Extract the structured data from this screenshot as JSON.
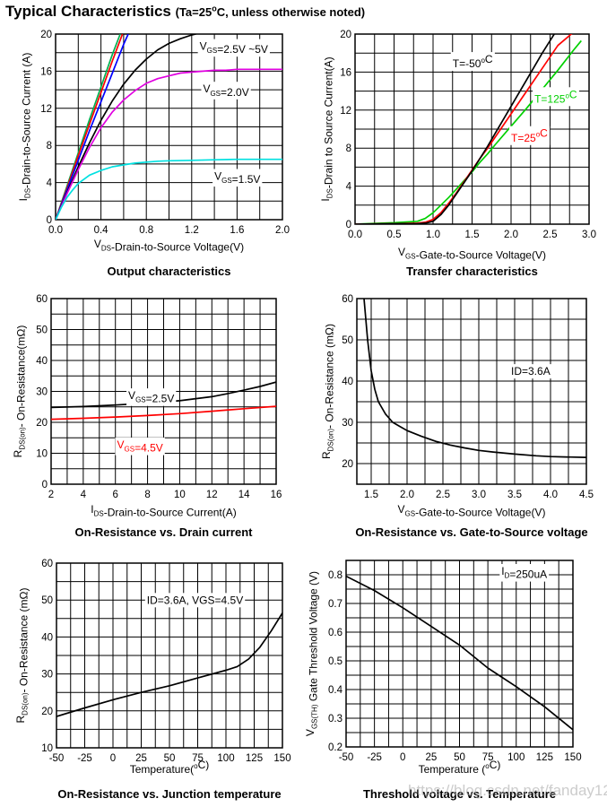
{
  "page": {
    "title": "Typical Characteristics",
    "title_condition": "(Ta=25",
    "title_degree": "o",
    "title_condition_end": "C, unless otherwise noted)",
    "watermark": "https://blog.csdn.net/fanday123"
  },
  "chart_data": [
    {
      "id": "output",
      "type": "line",
      "title": "Output characteristics",
      "xlabel": [
        [
          "V",
          ""
        ],
        [
          "DS",
          "sub"
        ],
        [
          "-Drain-to-Source Voltage(V)",
          ""
        ]
      ],
      "ylabel": [
        [
          "I",
          ""
        ],
        [
          "DS",
          "sub"
        ],
        [
          "-Drain-to-Source Current (A)",
          ""
        ]
      ],
      "xlim": [
        0,
        2.0
      ],
      "ylim": [
        0,
        20
      ],
      "xticks": [
        0,
        0.4,
        0.8,
        1.2,
        1.6,
        2.0
      ],
      "xtick_labels": [
        "0.0",
        "0.4",
        "0.8",
        "1.2",
        "1.6",
        "2.0"
      ],
      "yticks": [
        0,
        4,
        8,
        12,
        16,
        20
      ],
      "ytick_labels": [
        "0",
        "4",
        "8",
        "12",
        "16",
        "20"
      ],
      "grid": true,
      "series": [
        {
          "color": "#00b050",
          "x": [
            0,
            0.1,
            0.2,
            0.3,
            0.4,
            0.5,
            0.57
          ],
          "y": [
            0,
            3.6,
            7.2,
            10.8,
            14.3,
            17.8,
            20
          ]
        },
        {
          "color": "#ff0000",
          "x": [
            0,
            0.1,
            0.2,
            0.3,
            0.4,
            0.5,
            0.59
          ],
          "y": [
            0,
            3.4,
            6.9,
            10.3,
            13.7,
            17.1,
            20
          ]
        },
        {
          "color": "#0000ff",
          "x": [
            0,
            0.1,
            0.2,
            0.3,
            0.4,
            0.5,
            0.6,
            0.64
          ],
          "y": [
            0,
            3.2,
            6.4,
            9.6,
            12.7,
            15.8,
            18.9,
            20
          ]
        },
        {
          "color": "#000000",
          "x": [
            0,
            0.1,
            0.2,
            0.3,
            0.4,
            0.5,
            0.6,
            0.7,
            0.8,
            0.9,
            1.0,
            1.1,
            1.2,
            1.3,
            1.4,
            1.5,
            1.6,
            1.7,
            1.8,
            1.9,
            2.0
          ],
          "y": [
            0,
            2.9,
            5.7,
            8.3,
            10.7,
            12.8,
            14.6,
            16.1,
            17.3,
            18.3,
            19.0,
            19.5,
            19.9,
            20.2,
            20.4,
            20.5,
            20.6,
            20.6,
            20.6,
            20.6,
            20.6
          ]
        },
        {
          "color": "#e000e0",
          "x": [
            0,
            0.1,
            0.2,
            0.3,
            0.4,
            0.5,
            0.6,
            0.7,
            0.8,
            0.9,
            1.0,
            1.1,
            1.2,
            1.3,
            1.4,
            1.5,
            1.6,
            1.7,
            1.8,
            1.9,
            2.0
          ],
          "y": [
            0,
            2.8,
            5.4,
            7.8,
            9.9,
            11.6,
            12.9,
            13.9,
            14.7,
            15.2,
            15.5,
            15.8,
            15.9,
            16.0,
            16.1,
            16.1,
            16.2,
            16.2,
            16.2,
            16.2,
            16.2
          ]
        },
        {
          "color": "#00e0e0",
          "x": [
            0,
            0.05,
            0.1,
            0.15,
            0.2,
            0.3,
            0.4,
            0.5,
            0.6,
            0.7,
            0.8,
            0.9,
            1.0,
            1.2,
            1.4,
            1.6,
            1.8,
            2.0
          ],
          "y": [
            0,
            1.3,
            2.4,
            3.2,
            3.9,
            4.8,
            5.3,
            5.7,
            5.9,
            6.1,
            6.2,
            6.3,
            6.35,
            6.4,
            6.45,
            6.5,
            6.5,
            6.5
          ]
        }
      ],
      "annotations": [
        {
          "parts": [
            [
              "V",
              ""
            ],
            [
              "GS",
              "sub"
            ],
            [
              "=2.5V ~5V",
              ""
            ]
          ],
          "x": 1.27,
          "y": 18.3,
          "color": "#000"
        },
        {
          "parts": [
            [
              "V",
              ""
            ],
            [
              "GS",
              "sub"
            ],
            [
              "=2.0V",
              ""
            ]
          ],
          "x": 1.3,
          "y": 13.7,
          "color": "#000"
        },
        {
          "parts": [
            [
              "V",
              ""
            ],
            [
              "GS",
              "sub"
            ],
            [
              "=1.5V",
              ""
            ]
          ],
          "x": 1.4,
          "y": 4.3,
          "color": "#000"
        }
      ]
    },
    {
      "id": "transfer",
      "type": "line",
      "title": "Transfer characteristics",
      "xlabel": [
        [
          "V",
          ""
        ],
        [
          "GS",
          "sub"
        ],
        [
          "-Gate-to-Source Voltage(V)",
          ""
        ]
      ],
      "ylabel": [
        [
          "I",
          ""
        ],
        [
          "DS",
          "sub"
        ],
        [
          "-Drain to Source Current(A)",
          ""
        ]
      ],
      "xlim": [
        0,
        3.0
      ],
      "ylim": [
        0,
        20
      ],
      "xticks": [
        0,
        0.5,
        1.0,
        1.5,
        2.0,
        2.5,
        3.0
      ],
      "xtick_labels": [
        "0.0",
        "0.5",
        "1.0",
        "1.5",
        "2.0",
        "2.5",
        "3.0"
      ],
      "yticks": [
        0,
        4,
        8,
        12,
        16,
        20
      ],
      "ytick_labels": [
        "0",
        "4",
        "8",
        "12",
        "16",
        "20"
      ],
      "grid": true,
      "series": [
        {
          "color": "#00d000",
          "x": [
            0,
            0.5,
            0.8,
            0.9,
            1.0,
            1.1,
            1.2,
            1.3,
            1.4,
            1.5,
            1.6,
            1.7,
            1.8,
            2.0,
            2.2,
            2.4,
            2.6,
            2.8,
            2.9
          ],
          "y": [
            0,
            0.15,
            0.3,
            0.6,
            1.2,
            2.0,
            2.8,
            3.7,
            4.6,
            5.5,
            6.5,
            7.4,
            8.4,
            10.3,
            12.2,
            14.2,
            16.2,
            18.3,
            19.3
          ]
        },
        {
          "color": "#ff0000",
          "x": [
            0,
            0.5,
            0.8,
            0.9,
            1.0,
            1.1,
            1.2,
            1.3,
            1.4,
            1.5,
            1.6,
            1.7,
            1.8,
            2.0,
            2.2,
            2.4,
            2.6,
            2.8
          ],
          "y": [
            0,
            0.05,
            0.1,
            0.2,
            0.5,
            1.2,
            2.2,
            3.3,
            4.5,
            5.7,
            6.9,
            8.0,
            9.2,
            11.6,
            14.0,
            16.4,
            18.8,
            20.2
          ]
        },
        {
          "color": "#000000",
          "x": [
            0,
            0.5,
            0.8,
            0.9,
            1.0,
            1.1,
            1.2,
            1.3,
            1.4,
            1.5,
            1.6,
            1.7,
            1.8,
            2.0,
            2.2,
            2.4,
            2.6,
            2.7
          ],
          "y": [
            0,
            0.05,
            0.05,
            0.1,
            0.3,
            1.0,
            2.0,
            3.2,
            4.4,
            5.6,
            6.9,
            8.2,
            9.6,
            12.4,
            15.2,
            18.0,
            20.6,
            21.4
          ]
        }
      ],
      "annotations": [
        {
          "parts": [
            [
              "T=-50",
              ""
            ],
            [
              "o",
              "sup"
            ],
            [
              "C",
              ""
            ]
          ],
          "x": 1.25,
          "y": 16.5,
          "color": "#000"
        },
        {
          "parts": [
            [
              "T=125",
              ""
            ],
            [
              "o",
              "sup"
            ],
            [
              "C",
              ""
            ]
          ],
          "x": 2.3,
          "y": 12.8,
          "color": "#00d000"
        },
        {
          "parts": [
            [
              "T=25",
              ""
            ],
            [
              "o",
              "sup"
            ],
            [
              "C",
              ""
            ]
          ],
          "x": 2.0,
          "y": 8.7,
          "color": "#ff0000"
        }
      ]
    },
    {
      "id": "ron-id",
      "type": "line",
      "title": "On-Resistance vs. Drain current",
      "xlabel": [
        [
          "I",
          ""
        ],
        [
          "DS",
          "sub"
        ],
        [
          "-Drain-to-Source Current(A)",
          ""
        ]
      ],
      "ylabel": [
        [
          "R",
          ""
        ],
        [
          "DS(on)",
          "sub"
        ],
        [
          "- On-Resistance(mΩ)",
          ""
        ]
      ],
      "xlim": [
        2,
        16
      ],
      "ylim": [
        0,
        60
      ],
      "xticks": [
        2,
        4,
        6,
        8,
        10,
        12,
        14,
        16
      ],
      "xtick_labels": [
        "2",
        "4",
        "6",
        "8",
        "10",
        "12",
        "14",
        "16"
      ],
      "yticks": [
        0,
        10,
        20,
        30,
        40,
        50,
        60
      ],
      "ytick_labels": [
        "0",
        "10",
        "20",
        "30",
        "40",
        "50",
        "60"
      ],
      "grid": true,
      "series": [
        {
          "color": "#000000",
          "x": [
            2,
            4,
            6,
            8,
            10,
            12,
            13,
            14,
            15,
            16
          ],
          "y": [
            24.8,
            25.1,
            25.6,
            26.2,
            27.0,
            28.3,
            29.3,
            30.4,
            31.6,
            33.0
          ]
        },
        {
          "color": "#ff0000",
          "x": [
            2,
            4,
            6,
            8,
            10,
            12,
            14,
            16
          ],
          "y": [
            21.0,
            21.3,
            21.7,
            22.2,
            22.8,
            23.6,
            24.4,
            25.2
          ]
        }
      ],
      "annotations": [
        {
          "parts": [
            [
              "V",
              ""
            ],
            [
              "GS",
              "sub"
            ],
            [
              "=2.5V",
              ""
            ]
          ],
          "x": 6.8,
          "y": 27.5,
          "color": "#000"
        },
        {
          "parts": [
            [
              "V",
              ""
            ],
            [
              "GS",
              "sub"
            ],
            [
              "=4.5V",
              ""
            ]
          ],
          "x": 6.1,
          "y": 11.6,
          "color": "#ff0000"
        }
      ]
    },
    {
      "id": "ron-vgs",
      "type": "line",
      "title": "On-Resistance vs. Gate-to-Source voltage",
      "xlabel": [
        [
          "V",
          ""
        ],
        [
          "GS",
          "sub"
        ],
        [
          "-Gate-to-Source Voltage(V)",
          ""
        ]
      ],
      "ylabel": [
        [
          "R",
          ""
        ],
        [
          "DS(on)",
          "sub"
        ],
        [
          "- On-Resistance (mΩ)",
          ""
        ]
      ],
      "xlim": [
        1.3,
        4.5
      ],
      "ylim": [
        15,
        60
      ],
      "xticks": [
        1.5,
        2.0,
        2.5,
        3.0,
        3.5,
        4.0,
        4.5
      ],
      "xtick_labels": [
        "1.5",
        "2.0",
        "2.5",
        "3.0",
        "3.5",
        "4.0",
        "4.5"
      ],
      "yticks": [
        20,
        30,
        40,
        50,
        60
      ],
      "ytick_labels": [
        "20",
        "30",
        "40",
        "50",
        "60"
      ],
      "grid": true,
      "series": [
        {
          "color": "#000000",
          "x": [
            1.4,
            1.45,
            1.5,
            1.55,
            1.6,
            1.7,
            1.8,
            1.9,
            2.0,
            2.2,
            2.4,
            2.6,
            2.8,
            3.0,
            3.2,
            3.5,
            3.8,
            4.0,
            4.2,
            4.5
          ],
          "y": [
            60,
            50,
            42.5,
            38,
            35,
            32,
            30,
            29,
            28,
            26.6,
            25.4,
            24.5,
            23.8,
            23.2,
            22.8,
            22.3,
            21.9,
            21.7,
            21.6,
            21.5
          ]
        }
      ],
      "annotations": [
        {
          "parts": [
            [
              "ID=3.6A",
              ""
            ]
          ],
          "x": 3.45,
          "y": 41.5,
          "color": "#000"
        }
      ]
    },
    {
      "id": "ron-temp",
      "type": "line",
      "title": "On-Resistance vs. Junction temperature",
      "xlabel": [
        [
          "Temperature(",
          ""
        ],
        [
          "o",
          "sup"
        ],
        [
          "C)",
          ""
        ]
      ],
      "ylabel": [
        [
          "R",
          ""
        ],
        [
          "DS(on)",
          "sub"
        ],
        [
          "- On-Resistance (mΩ)",
          ""
        ]
      ],
      "xlim": [
        -50,
        150
      ],
      "ylim": [
        10,
        60
      ],
      "xticks": [
        -50,
        -25,
        0,
        25,
        50,
        75,
        100,
        125,
        150
      ],
      "xtick_labels": [
        "-50",
        "-25",
        "0",
        "25",
        "50",
        "75",
        "100",
        "125",
        "150"
      ],
      "yticks": [
        10,
        20,
        30,
        40,
        50,
        60
      ],
      "ytick_labels": [
        "10",
        "20",
        "30",
        "40",
        "50",
        "60"
      ],
      "grid": true,
      "series": [
        {
          "color": "#000000",
          "x": [
            -50,
            -25,
            0,
            25,
            50,
            75,
            100,
            110,
            120,
            130,
            140,
            150
          ],
          "y": [
            18.5,
            20.8,
            23.0,
            25.0,
            26.8,
            28.9,
            31.0,
            32.0,
            34.0,
            37.2,
            41.6,
            46.5
          ]
        }
      ],
      "annotations": [
        {
          "parts": [
            [
              "ID=3.6A, VGS=4.5V",
              ""
            ]
          ],
          "x": 30,
          "y": 49,
          "color": "#000"
        }
      ]
    },
    {
      "id": "vth-temp",
      "type": "line",
      "title": "Threshold voltage vs. Temperature",
      "xlabel": [
        [
          "Temperature (",
          ""
        ],
        [
          "o",
          "sup"
        ],
        [
          "C)",
          ""
        ]
      ],
      "ylabel": [
        [
          "V",
          ""
        ],
        [
          "GS(TH)",
          "sub"
        ],
        [
          " Gate Threshold Voltage (V)",
          ""
        ]
      ],
      "xlim": [
        -50,
        150
      ],
      "ylim": [
        0.2,
        0.85
      ],
      "xticks": [
        -50,
        -25,
        0,
        25,
        50,
        75,
        100,
        125,
        150
      ],
      "xtick_labels": [
        "-50",
        "-25",
        "0",
        "25",
        "50",
        "75",
        "100",
        "125",
        "150"
      ],
      "yticks": [
        0.2,
        0.3,
        0.4,
        0.5,
        0.6,
        0.7,
        0.8
      ],
      "ytick_labels": [
        "0.2",
        "0.3",
        "0.4",
        "0.5",
        "0.6",
        "0.7",
        "0.8"
      ],
      "grid": true,
      "series": [
        {
          "color": "#000000",
          "x": [
            -50,
            -25,
            0,
            25,
            50,
            75,
            100,
            125,
            150
          ],
          "y": [
            0.795,
            0.745,
            0.685,
            0.62,
            0.555,
            0.475,
            0.41,
            0.34,
            0.26
          ]
        }
      ],
      "annotations": [
        {
          "parts": [
            [
              "I",
              ""
            ],
            [
              "D",
              "sub"
            ],
            [
              "=250uA",
              ""
            ]
          ],
          "x": 87,
          "y": 0.8,
          "color": "#000"
        }
      ]
    }
  ]
}
